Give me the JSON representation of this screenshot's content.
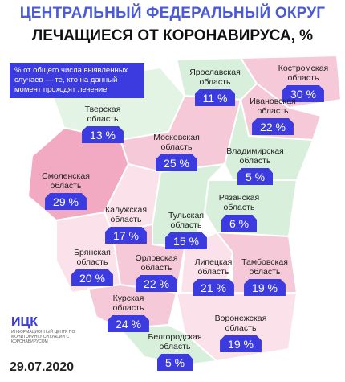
{
  "header": {
    "title": "ЦЕНТРАЛЬНЫЙ ФЕДЕРАЛЬНЫЙ ОКРУГ",
    "subtitle": "ЛЕЧАЩИЕСЯ ОТ КОРОНАВИРУСА, %"
  },
  "note": "% от общего числа выявленных случаев — те, кто на данный момент проходят лечение",
  "regions": [
    {
      "name": "Ярославская область",
      "value": "11 %"
    },
    {
      "name": "Костромская область",
      "value": "30 %"
    },
    {
      "name": "Тверская область",
      "value": "13 %"
    },
    {
      "name": "Ивановская область",
      "value": "22 %"
    },
    {
      "name": "Московская область",
      "value": "25 %"
    },
    {
      "name": "Владимирская область",
      "value": "5 %"
    },
    {
      "name": "Смоленская область",
      "value": "29 %"
    },
    {
      "name": "Рязанская область",
      "value": "6 %"
    },
    {
      "name": "Калужская область",
      "value": "17 %"
    },
    {
      "name": "Тульская область",
      "value": "15 %"
    },
    {
      "name": "Брянская область",
      "value": "20 %"
    },
    {
      "name": "Орловская область",
      "value": "22 %"
    },
    {
      "name": "Липецкая область",
      "value": "21 %"
    },
    {
      "name": "Тамбовская область",
      "value": "19 %"
    },
    {
      "name": "Курская область",
      "value": "24 %"
    },
    {
      "name": "Воронежская область",
      "value": "19 %"
    },
    {
      "name": "Белгородская область",
      "value": "5 %"
    }
  ],
  "logo": {
    "name": "ИЦК",
    "caption": "Информационный центр по мониторингу ситуации с коронавирусом"
  },
  "date": "29.07.2020"
}
